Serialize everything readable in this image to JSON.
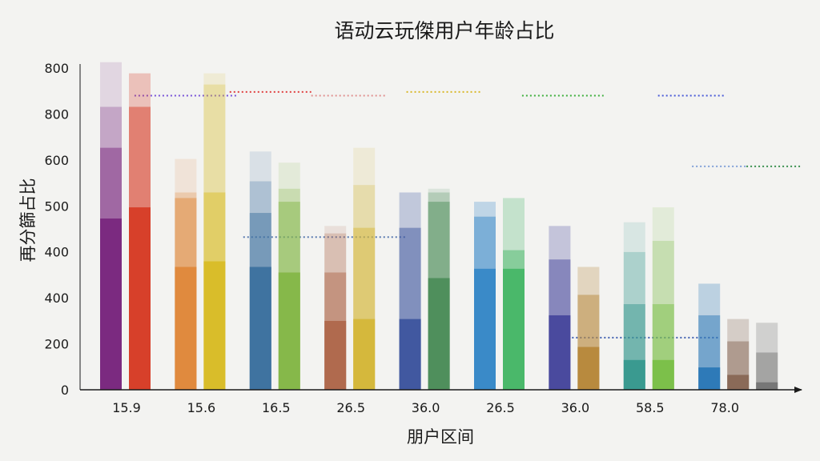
{
  "chart_data": {
    "type": "bar",
    "title": "语动云玩傑用户年龄占比",
    "xlabel": "朋户区间",
    "ylabel": "再分篩占比",
    "ylim": [
      0,
      875
    ],
    "y_ticks": [
      "0",
      "200",
      "400",
      "400",
      "500",
      "600",
      "800",
      "800"
    ],
    "categories": [
      "15.9",
      "15.6",
      "16.5",
      "26.5",
      "36.0",
      "26.5",
      "36.0",
      "58.5",
      "78.0"
    ],
    "bars": [
      {
        "group": 0,
        "color": "#7b2a80",
        "levels": [
          760,
          880,
          650,
          460
        ]
      },
      {
        "group": 0,
        "color": "#d7402a",
        "levels": [
          760,
          850,
          490
        ]
      },
      {
        "group": 1,
        "color": "#e08a3e",
        "levels": [
          620,
          530,
          515,
          330
        ]
      },
      {
        "group": 1,
        "color": "#d9bd2a",
        "levels": [
          850,
          820,
          530,
          345
        ]
      },
      {
        "group": 2,
        "color": "#3f73a0",
        "levels": [
          640,
          560,
          475,
          330
        ]
      },
      {
        "group": 2,
        "color": "#86b84a",
        "levels": [
          610,
          540,
          505,
          315
        ]
      },
      {
        "group": 3,
        "color": "#b06a4e",
        "levels": [
          440,
          420,
          315,
          185
        ]
      },
      {
        "group": 3,
        "color": "#d5b83c",
        "levels": [
          650,
          550,
          435,
          190
        ]
      },
      {
        "group": 4,
        "color": "#4158a0",
        "levels": [
          530,
          435,
          190
        ]
      },
      {
        "group": 4,
        "color": "#4f8f5c",
        "levels": [
          540,
          530,
          505,
          300
        ]
      },
      {
        "group": 5,
        "color": "#3a8ac8",
        "levels": [
          465,
          505,
          325
        ]
      },
      {
        "group": 5,
        "color": "#4ab86a",
        "levels": [
          515,
          325,
          375
        ]
      },
      {
        "group": 6,
        "color": "#4a4a9e",
        "levels": [
          440,
          350,
          200
        ]
      },
      {
        "group": 6,
        "color": "#b88a3e",
        "levels": [
          330,
          255,
          115
        ]
      },
      {
        "group": 7,
        "color": "#3a9a90",
        "levels": [
          450,
          370,
          230,
          80
        ]
      },
      {
        "group": 7,
        "color": "#7cc04a",
        "levels": [
          490,
          400,
          230,
          80
        ]
      },
      {
        "group": 8,
        "color": "#2e7ab8",
        "levels": [
          285,
          200,
          60
        ]
      },
      {
        "group": 8,
        "color": "#8a6a58",
        "levels": [
          190,
          130,
          40
        ]
      },
      {
        "group": 8,
        "color": "#777777",
        "levels": [
          180,
          100,
          20
        ]
      }
    ],
    "reference_lines": [
      {
        "color": "#7a55d8",
        "y": 790,
        "x_from": 0.8,
        "x_to": 2.3
      },
      {
        "color": "#e04040",
        "y": 800,
        "x_from": 2.2,
        "x_to": 3.4
      },
      {
        "color": "#e09090",
        "y": 790,
        "x_from": 3.4,
        "x_to": 4.5
      },
      {
        "color": "#5a7ab0",
        "y": 410,
        "x_from": 2.4,
        "x_to": 4.8
      },
      {
        "color": "#d9b82a",
        "y": 800,
        "x_from": 4.8,
        "x_to": 5.9
      },
      {
        "color": "#40b040",
        "y": 790,
        "x_from": 6.5,
        "x_to": 7.7
      },
      {
        "color": "#3f5fb0",
        "y": 140,
        "x_from": 7.0,
        "x_to": 9.4
      },
      {
        "color": "#4a5bd8",
        "y": 790,
        "x_from": 8.5,
        "x_to": 9.5
      },
      {
        "color": "#80a0d8",
        "y": 600,
        "x_from": 9.0,
        "x_to": 9.8
      },
      {
        "color": "#3a9050",
        "y": 600,
        "x_from": 9.8,
        "x_to": 10.6
      }
    ],
    "grid": false,
    "legend": "none"
  }
}
